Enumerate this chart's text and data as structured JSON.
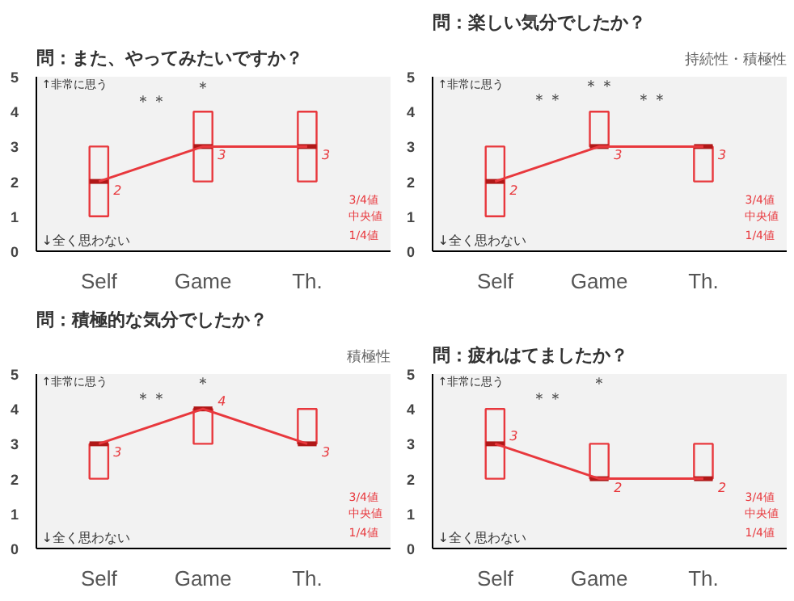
{
  "chart_data": [
    {
      "type": "box",
      "title": "問：また、やってみたいですか？",
      "categories": [
        "Self",
        "Game",
        "Th."
      ],
      "ylim": [
        0,
        5
      ],
      "yticks": [
        0,
        1,
        2,
        3,
        4,
        5
      ],
      "grid": false,
      "annotations": [
        "↑非常に思う",
        "↓全く思わない",
        "3/4値",
        "中央値",
        "1/4値",
        "＊＊",
        "＊"
      ],
      "series": [
        {
          "color": "#e8383d",
          "boxes": [
            {
              "low": 1,
              "q1": 1,
              "median": 2,
              "q3": 3,
              "high": 3
            },
            {
              "low": 2,
              "q1": 2,
              "median": 3,
              "q3": 4,
              "high": 4
            },
            {
              "low": 2,
              "q1": 2,
              "median": 3,
              "q3": 4,
              "high": 4
            }
          ]
        },
        {
          "type": "line",
          "color": "#e8383d",
          "values": [
            2,
            3,
            3
          ],
          "value_labels": [
            "2",
            "3",
            "3"
          ]
        }
      ]
    },
    {
      "type": "box",
      "title": "問：楽しい気分でしたか？",
      "subtitle": "持続性・積極性",
      "categories": [
        "Self",
        "Game",
        "Th."
      ],
      "ylim": [
        0,
        5
      ],
      "yticks": [
        0,
        1,
        2,
        3,
        4,
        5
      ],
      "grid": false,
      "annotations": [
        "↑非常に思う",
        "↓全く思わない",
        "3/4値",
        "中央値",
        "1/4値",
        "＊＊",
        "＊＊",
        "＊＊"
      ],
      "series": [
        {
          "color": "#e8383d",
          "boxes": [
            {
              "low": 1,
              "q1": 1,
              "median": 2,
              "q3": 3,
              "high": 3
            },
            {
              "low": 3,
              "q1": 3,
              "median": 3,
              "q3": 4,
              "high": 4
            },
            {
              "low": 2,
              "q1": 2,
              "median": 3,
              "q3": 3,
              "high": 3
            }
          ]
        },
        {
          "type": "line",
          "color": "#e8383d",
          "values": [
            2,
            3,
            3
          ],
          "value_labels": [
            "2",
            "3",
            "3"
          ]
        }
      ]
    },
    {
      "type": "box",
      "title": "問：積極的な気分でしたか？",
      "subtitle": "積極性",
      "categories": [
        "Self",
        "Game",
        "Th."
      ],
      "ylim": [
        0,
        5
      ],
      "yticks": [
        0,
        1,
        2,
        3,
        4,
        5
      ],
      "grid": false,
      "annotations": [
        "↑非常に思う",
        "↓全く思わない",
        "3/4値",
        "中央値",
        "1/4値",
        "＊＊",
        "＊"
      ],
      "series": [
        {
          "color": "#e8383d",
          "boxes": [
            {
              "low": 2,
              "q1": 2,
              "median": 3,
              "q3": 3,
              "high": 3
            },
            {
              "low": 3,
              "q1": 3,
              "median": 4,
              "q3": 4,
              "high": 4
            },
            {
              "low": 3,
              "q1": 3,
              "median": 3,
              "q3": 4,
              "high": 4
            }
          ]
        },
        {
          "type": "line",
          "color": "#e8383d",
          "values": [
            3,
            4,
            3
          ],
          "value_labels": [
            "3",
            "4",
            "3"
          ]
        }
      ]
    },
    {
      "type": "box",
      "title": "問：疲れはてましたか？",
      "categories": [
        "Self",
        "Game",
        "Th."
      ],
      "ylim": [
        0,
        5
      ],
      "yticks": [
        0,
        1,
        2,
        3,
        4,
        5
      ],
      "grid": false,
      "annotations": [
        "↑非常に思う",
        "↓全く思わない",
        "3/4値",
        "中央値",
        "1/4値",
        "＊＊",
        "＊"
      ],
      "series": [
        {
          "color": "#e8383d",
          "boxes": [
            {
              "low": 2,
              "q1": 2,
              "median": 3,
              "q3": 4,
              "high": 4
            },
            {
              "low": 2,
              "q1": 2,
              "median": 2,
              "q3": 3,
              "high": 3
            },
            {
              "low": 2,
              "q1": 2,
              "median": 2,
              "q3": 3,
              "high": 3
            }
          ]
        },
        {
          "type": "line",
          "color": "#e8383d",
          "values": [
            3,
            2,
            2
          ],
          "value_labels": [
            "3",
            "2",
            "2"
          ]
        }
      ]
    }
  ]
}
